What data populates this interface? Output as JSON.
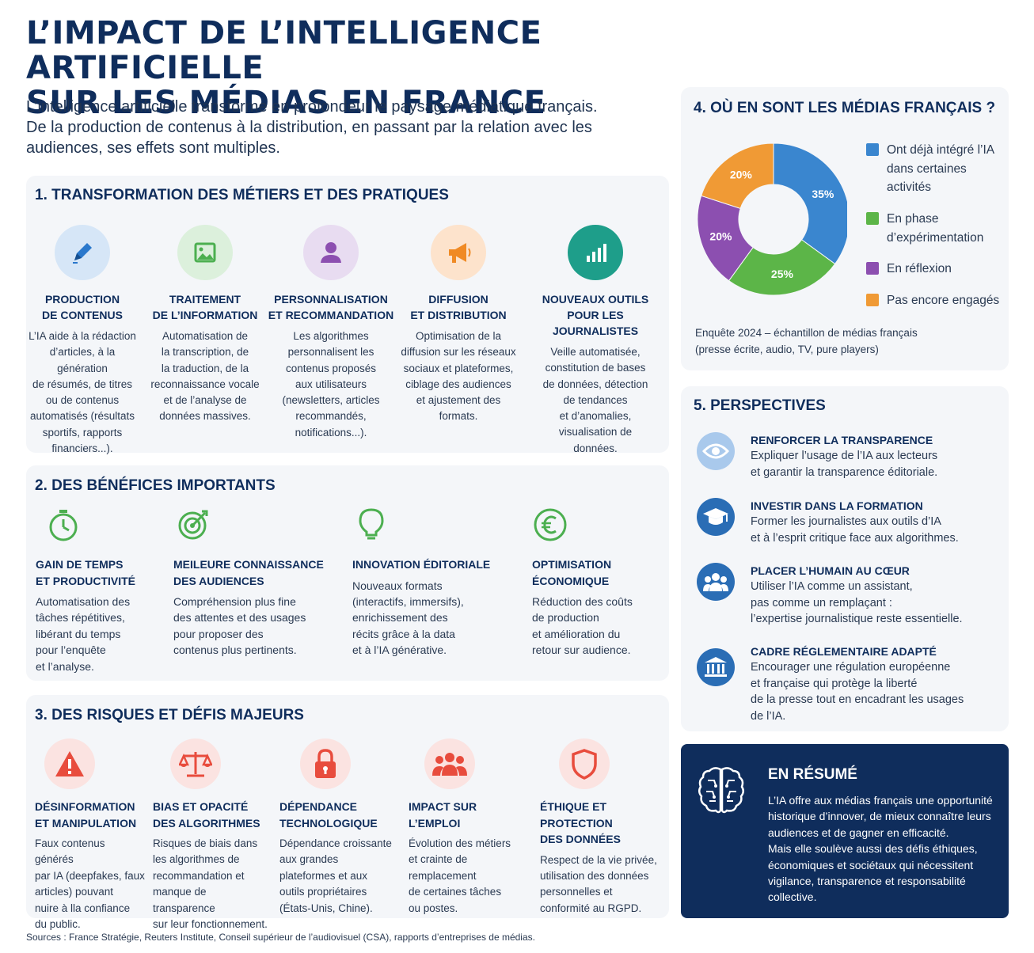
{
  "title_line1": "L’IMPACT DE L’INTELLIGENCE ARTIFICIELLE",
  "title_line2": "SUR LES MÉDIAS EN FRANCE",
  "intro": [
    "L’intelligence artificielle transforme en profondeur le paysage médiatique français.",
    "De la production de contenus à la distribution, en passant par la relation avec les",
    "audiences, ses effets sont multiples."
  ],
  "section1": {
    "title": "1. TRANSFORMATION DES MÉTIERS ET DES PRATIQUES",
    "items": [
      {
        "icon": "pen-icon",
        "title": [
          "PRODUCTION",
          "DE CONTENUS"
        ],
        "text": [
          "L’IA aide à la rédaction",
          "d’articles, à la génération",
          "de résumés, de titres",
          "ou de contenus",
          "automatisés (résultats",
          "sportifs, rapports",
          "financiers...)."
        ]
      },
      {
        "icon": "image-icon",
        "title": [
          "TRAITEMENT",
          "DE L’INFORMATION"
        ],
        "text": [
          "Automatisation de",
          "la transcription, de",
          "la traduction, de la",
          "reconnaissance vocale",
          "et de l’analyse de",
          "données massives."
        ]
      },
      {
        "icon": "user-icon",
        "title": [
          "PERSONNALISATION",
          "ET RECOMMANDATION"
        ],
        "text": [
          "Les algorithmes",
          "personnalisent les",
          "contenus proposés",
          "aux utilisateurs",
          "(newsletters, articles",
          "recommandés,",
          "notifications...)."
        ]
      },
      {
        "icon": "megaphone-icon",
        "title": [
          "DIFFUSION",
          "ET DISTRIBUTION"
        ],
        "text": [
          "Optimisation de la",
          "diffusion sur les réseaux",
          "sociaux et plateformes,",
          "ciblage des audiences",
          "et ajustement des",
          "formats."
        ]
      },
      {
        "icon": "bar-chart-icon",
        "title": [
          "NOUVEAUX OUTILS",
          "POUR LES JOURNALISTES"
        ],
        "text": [
          "Veille automatisée,",
          "constitution de bases",
          "de données, détection",
          "de tendances",
          "et d’anomalies,",
          "visualisation de",
          "données."
        ]
      }
    ]
  },
  "section2": {
    "title": "2. DES BÉNÉFICES IMPORTANTS",
    "items": [
      {
        "icon": "stopwatch-icon",
        "title": [
          "GAIN DE TEMPS",
          "ET PRODUCTIVITÉ"
        ],
        "text": [
          "Automatisation des",
          "tâches répétitives,",
          "libérant du temps",
          "pour l’enquête",
          "et l’analyse."
        ]
      },
      {
        "icon": "target-icon",
        "title": [
          "MEILEURE CONNAISSANCE",
          "DES AUDIENCES"
        ],
        "text": [
          "Compréhension plus fine",
          "des attentes et des usages",
          "pour proposer des",
          "contenus plus pertinents."
        ]
      },
      {
        "icon": "lightbulb-icon",
        "title": [
          "INNOVATION ÉDITORIALE"
        ],
        "text": [
          "Nouveaux formats",
          "(interactifs, immersifs),",
          "enrichissement des",
          "récits grâce à la data",
          "et à l’IA générative."
        ]
      },
      {
        "icon": "euro-icon",
        "title": [
          "OPTIMISATION",
          "ÉCONOMIQUE"
        ],
        "text": [
          "Réduction des coûts",
          "de production",
          "et amélioration du",
          "retour sur audience."
        ]
      }
    ]
  },
  "section3": {
    "title": "3. DES RISQUES ET DÉFIS MAJEURS",
    "items": [
      {
        "icon": "warning-icon",
        "title": [
          "DÉSINFORMATION",
          "ET MANIPULATION"
        ],
        "text": [
          "Faux contenus générés",
          "par IA (deepfakes, faux",
          "articles) pouvant",
          "nuire à lla confiance",
          "du public."
        ]
      },
      {
        "icon": "scales-icon",
        "title": [
          "BIAS ET OPACITÉ",
          "DES ALGORITHMES"
        ],
        "text": [
          "Risques de biais dans",
          "les algorithmes de",
          "recommandation et",
          "manque de transparence",
          "sur leur fonctionnement."
        ]
      },
      {
        "icon": "lock-icon",
        "title": [
          "DÉPENDANCE",
          "TECHNOLOGIQUE"
        ],
        "text": [
          "Dépendance croissante",
          "aux grandes",
          "plateformes et aux",
          "outils propriétaires",
          "(États-Unis, Chine)."
        ]
      },
      {
        "icon": "group-icon",
        "title": [
          "IMPACT SUR L’EMPLOI"
        ],
        "text": [
          "Évolution des métiers",
          "et crainte de",
          "remplacement",
          "de certaines tâches",
          "ou postes."
        ]
      },
      {
        "icon": "shield-icon",
        "title": [
          "ÉTHIQUE ET PROTECTION",
          "DES DONNÉES"
        ],
        "text": [
          "Respect de la vie privée,",
          "utilisation des données",
          "personnelles et",
          "conformité au RGPD."
        ]
      }
    ]
  },
  "section4": {
    "title": "4. OÙ EN SONT LES MÉDIAS FRANÇAIS ?",
    "note": [
      "Enquête 2024 – échantillon de médias français",
      "(presse écrite, audio, TV, pure players)"
    ]
  },
  "chart_data": {
    "type": "pie",
    "donut": true,
    "categories": [
      "Ont déjà intégré l’IA dans certaines activités",
      "En phase d’expérimentation",
      "En réflexion",
      "Pas encore engagés"
    ],
    "values": [
      35,
      25,
      20,
      20
    ],
    "value_labels": [
      "35%",
      "25%",
      "20%",
      "20%"
    ],
    "colors": [
      "#3a86cf",
      "#5cb548",
      "#8c4fb0",
      "#f09a35"
    ],
    "legend": [
      [
        "Ont déjà intégré l’IA",
        "dans certaines",
        "activités"
      ],
      [
        "En phase",
        "d’expérimentation"
      ],
      [
        "En réflexion"
      ],
      [
        "Pas encore engagés"
      ]
    ],
    "legend_position": "right"
  },
  "section5": {
    "title": "5. PERSPECTIVES",
    "items": [
      {
        "icon": "eye-icon",
        "title": "RENFORCER LA TRANSPARENCE",
        "text": [
          "Expliquer l’usage de l’IA aux lecteurs",
          "et garantir la transparence éditoriale."
        ]
      },
      {
        "icon": "graduation-cap-icon",
        "title": "INVESTIR DANS LA FORMATION",
        "text": [
          "Former les journalistes aux outils d’IA",
          "et à l’esprit critique face aux algorithmes."
        ]
      },
      {
        "icon": "people-icon",
        "title": "PLACER L’HUMAIN AU CŒUR",
        "text": [
          "Utiliser l’IA comme un assistant,",
          "pas comme un remplaçant :",
          "l’expertise journalistique reste essentielle."
        ]
      },
      {
        "icon": "institution-icon",
        "title": "CADRE RÉGLEMENTAIRE ADAPTÉ",
        "text": [
          "Encourager une régulation européenne",
          "et française qui protège la liberté",
          "de la presse tout en encadrant les usages",
          "de l’IA."
        ]
      }
    ]
  },
  "summary": {
    "icon": "brain-icon",
    "title": "EN RÉSUMÉ",
    "text": [
      "L’IA offre aux médias français une opportunité",
      "historique d’innover, de mieux connaître leurs",
      "audiences et de gagner en efficacité.",
      "Mais elle soulève aussi des défis éthiques,",
      "économiques et sociétaux qui nécessitent",
      "vigilance, transparence et responsabilité",
      "collective."
    ]
  },
  "sources": "Sources : France Stratégie, Reuters Institute, Conseil supérieur de l’audiovisuel (CSA), rapports d’entreprises de médias.",
  "colors": {
    "navy": "#0f2d5c",
    "panel": "#f4f6f9",
    "green": "#4caf50",
    "red": "#e84c3d",
    "blue": "#2a6db5"
  }
}
